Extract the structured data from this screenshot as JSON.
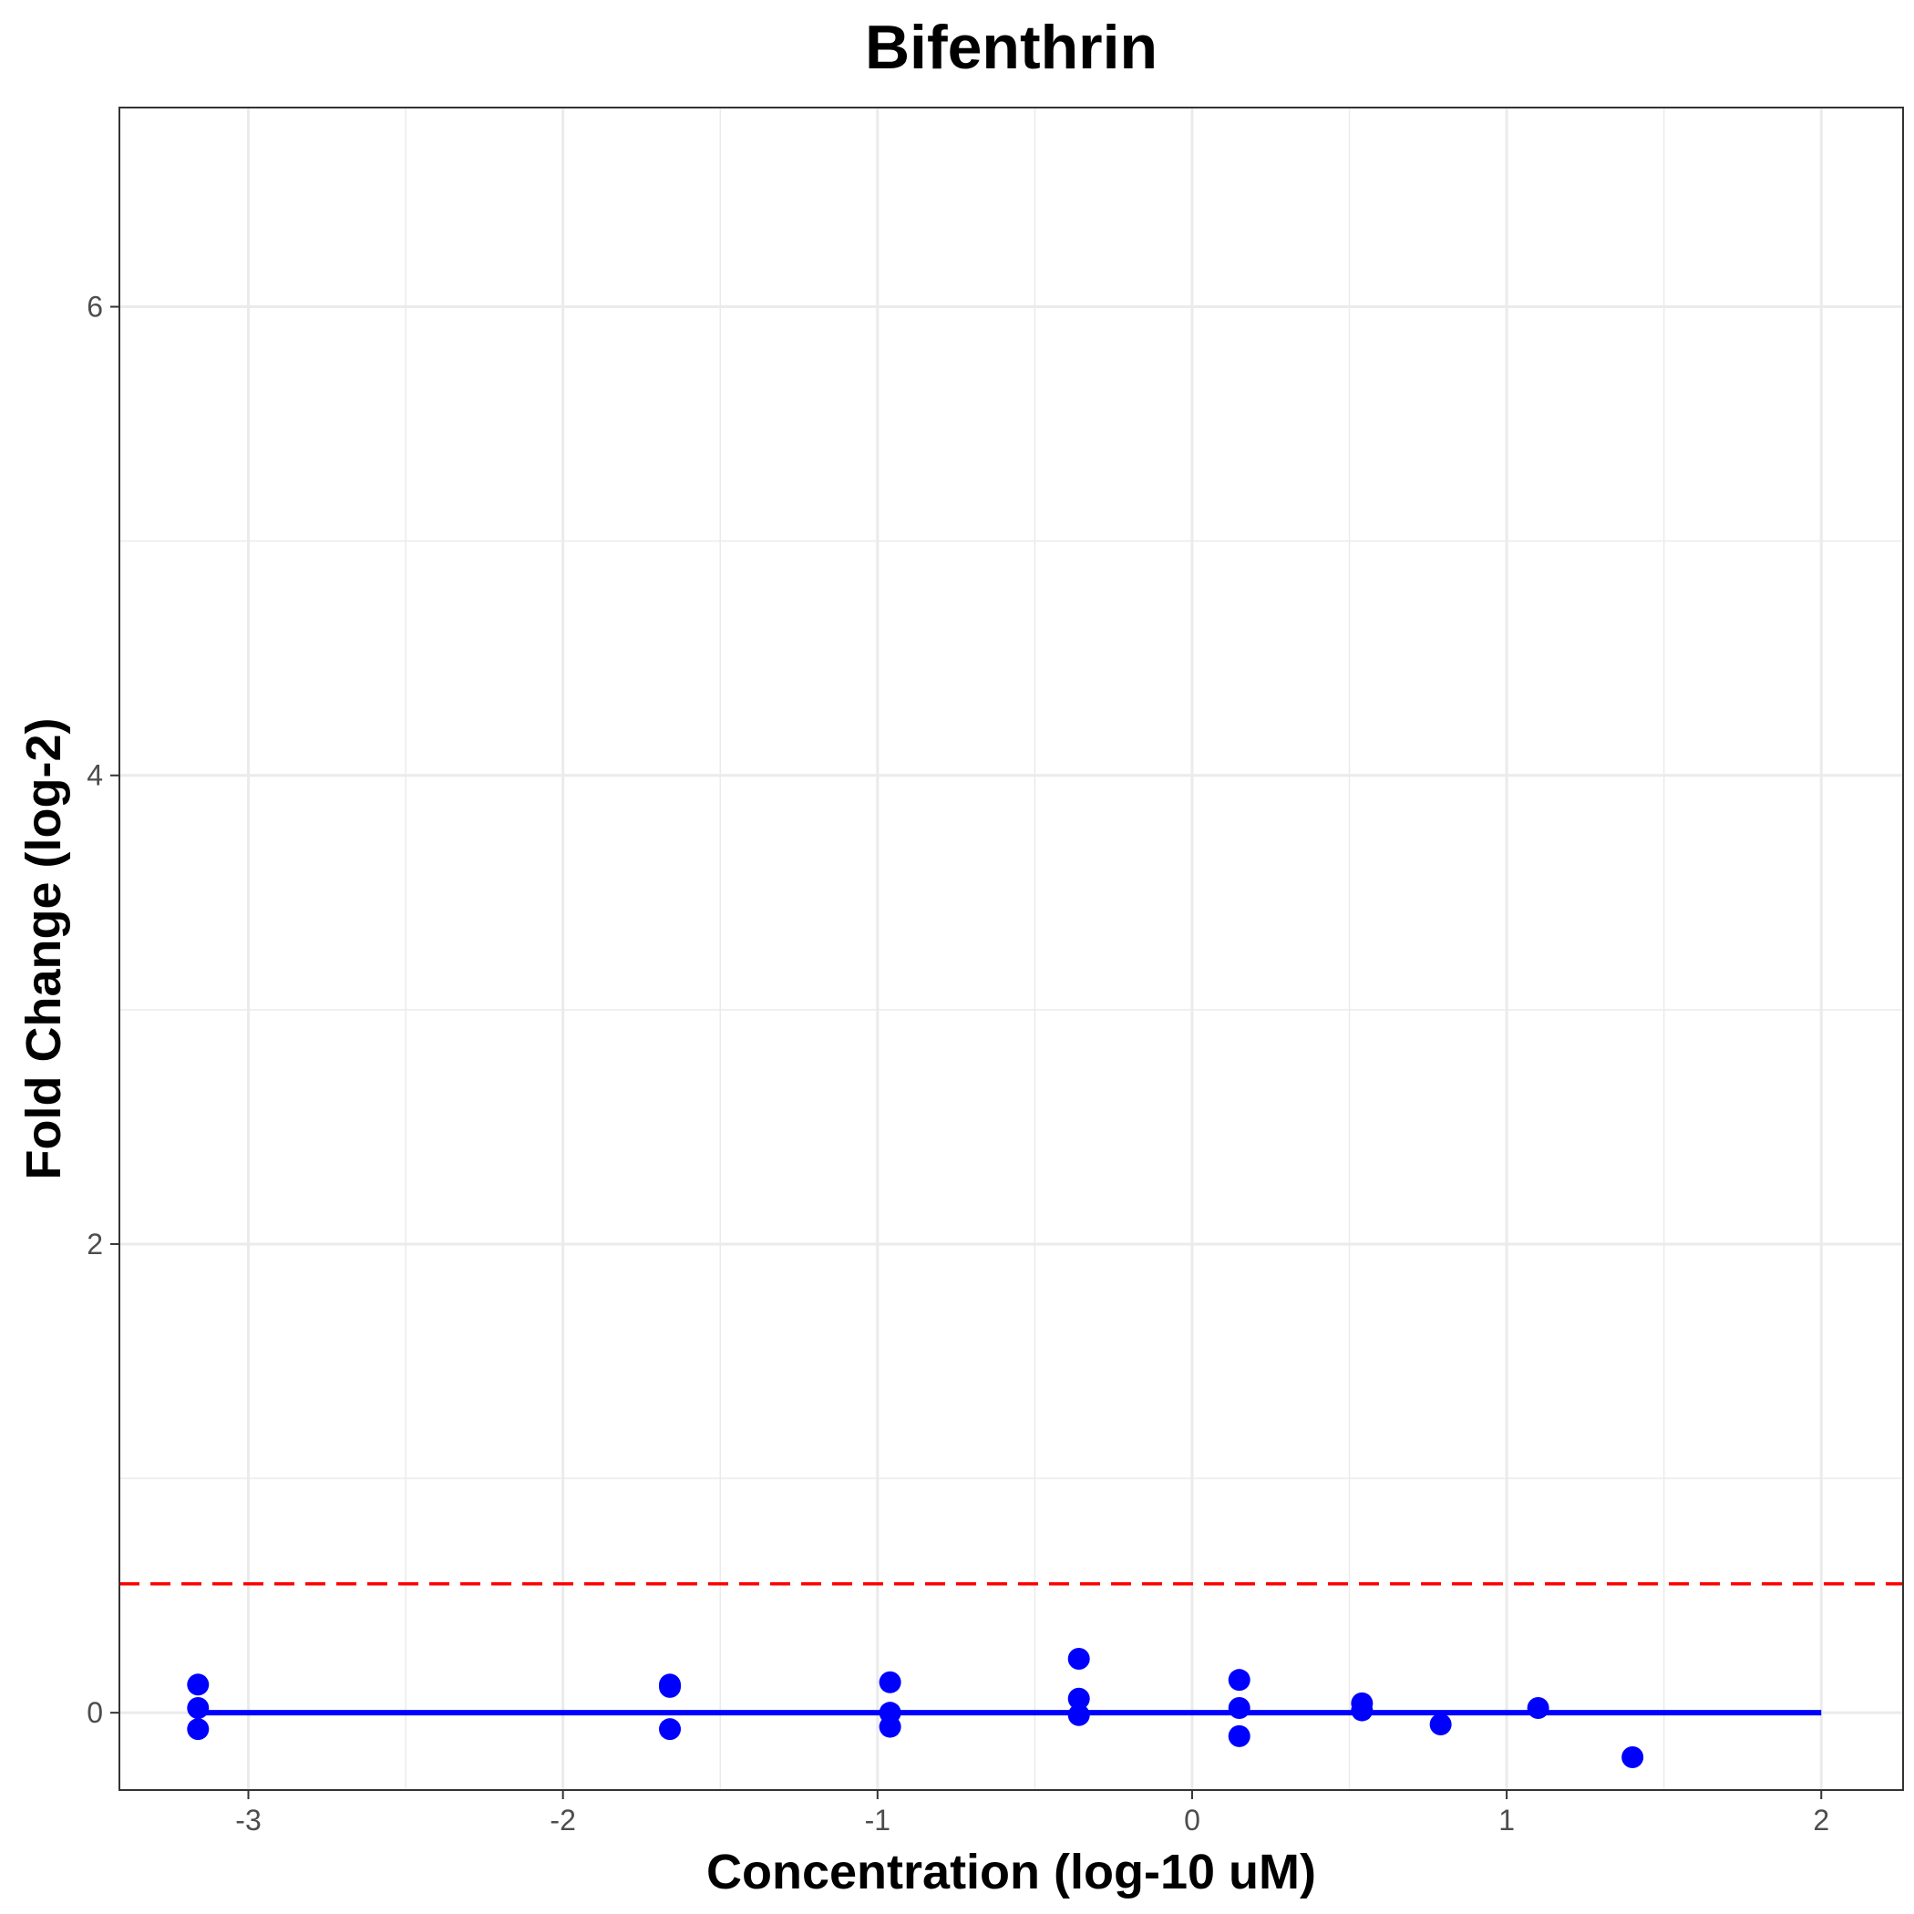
{
  "chart_data": {
    "type": "scatter",
    "title": "Bifenthrin",
    "xlabel": "Concentration (log-10 uM)",
    "ylabel": "Fold Change (log-2)",
    "xlim": [
      -3.41,
      2.26
    ],
    "ylim": [
      -0.33,
      6.85
    ],
    "x_ticks": [
      -3,
      -2,
      -1,
      0,
      1,
      2
    ],
    "y_ticks": [
      0,
      2,
      4,
      6
    ],
    "x_tick_labels": [
      "-3",
      "-2",
      "-1",
      "0",
      "1",
      "2"
    ],
    "y_tick_labels": [
      "0",
      "2",
      "4",
      "6"
    ],
    "grid": true,
    "points": [
      {
        "x": -3.16,
        "y": 0.12
      },
      {
        "x": -3.16,
        "y": 0.02
      },
      {
        "x": -3.16,
        "y": -0.07
      },
      {
        "x": -1.66,
        "y": 0.12
      },
      {
        "x": -1.66,
        "y": 0.11
      },
      {
        "x": -1.66,
        "y": -0.07
      },
      {
        "x": -0.96,
        "y": 0.13
      },
      {
        "x": -0.96,
        "y": 0.0
      },
      {
        "x": -0.96,
        "y": -0.06
      },
      {
        "x": -0.36,
        "y": 0.23
      },
      {
        "x": -0.36,
        "y": 0.06
      },
      {
        "x": -0.36,
        "y": -0.01
      },
      {
        "x": 0.15,
        "y": 0.14
      },
      {
        "x": 0.15,
        "y": 0.02
      },
      {
        "x": 0.15,
        "y": -0.1
      },
      {
        "x": 0.54,
        "y": 0.04
      },
      {
        "x": 0.54,
        "y": 0.01
      },
      {
        "x": 0.79,
        "y": -0.05
      },
      {
        "x": 1.1,
        "y": 0.02
      },
      {
        "x": 1.4,
        "y": -0.19
      }
    ],
    "fit_line": {
      "x": [
        -3.16,
        2.0
      ],
      "y": [
        0.0,
        0.0
      ]
    },
    "threshold": {
      "y": 0.55
    },
    "colors": {
      "points": "#0000ff",
      "fit_line": "#0000ff",
      "threshold": "#ff0000",
      "grid": "#ebebeb",
      "panel_border": "#333333",
      "tick_text": "#4d4d4d"
    }
  }
}
